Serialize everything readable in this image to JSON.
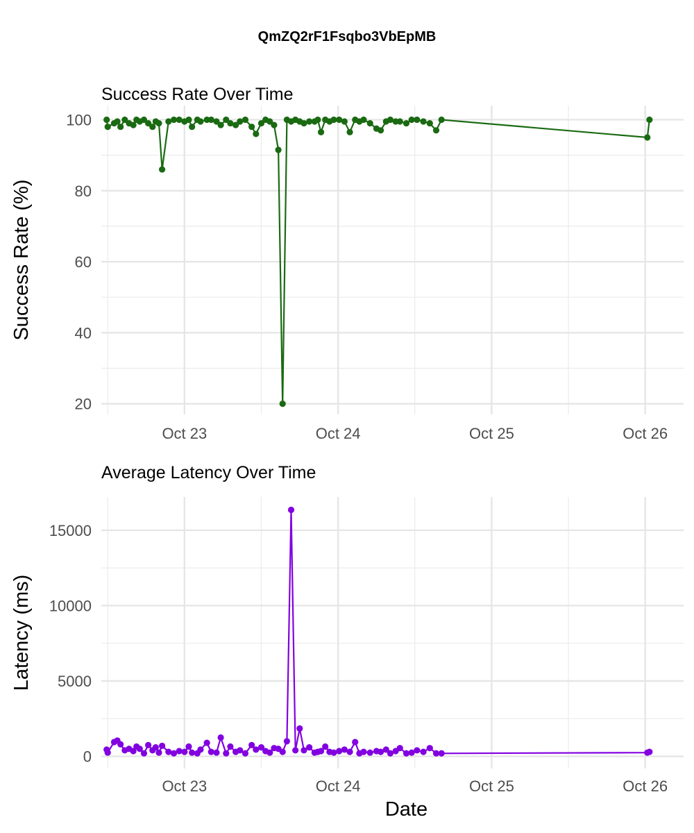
{
  "figure_title": "QmZQ2rF1Fsqbo3VbEpMB",
  "chart_data": [
    {
      "type": "line",
      "title": "Success Rate Over Time",
      "xlabel": "",
      "ylabel": "Success Rate (%)",
      "color": "#1a6a12",
      "xlim": [
        "2022-10-22 11:00",
        "2022-10-26 06:00"
      ],
      "ylim": [
        17,
        104
      ],
      "xticks": [
        "Oct 23",
        "Oct 24",
        "Oct 25",
        "Oct 26"
      ],
      "yticks": [
        20,
        40,
        60,
        80,
        100
      ],
      "grid": true,
      "series": [
        {
          "x": [
            "2022-10-22 11:50",
            "2022-10-22 12:00",
            "2022-10-22 13:00",
            "2022-10-22 13:30",
            "2022-10-22 14:00",
            "2022-10-22 14:40",
            "2022-10-22 15:20",
            "2022-10-22 16:00",
            "2022-10-22 16:30",
            "2022-10-22 17:00",
            "2022-10-22 17:40",
            "2022-10-22 18:20",
            "2022-10-22 19:00",
            "2022-10-22 19:30",
            "2022-10-22 20:00",
            "2022-10-22 20:30",
            "2022-10-22 21:30",
            "2022-10-22 22:20",
            "2022-10-22 23:10",
            "2022-10-23 00:00",
            "2022-10-23 00:40",
            "2022-10-23 01:10",
            "2022-10-23 02:00",
            "2022-10-23 02:30",
            "2022-10-23 03:30",
            "2022-10-23 04:10",
            "2022-10-23 05:00",
            "2022-10-23 05:40",
            "2022-10-23 06:30",
            "2022-10-23 07:10",
            "2022-10-23 08:00",
            "2022-10-23 08:40",
            "2022-10-23 09:30",
            "2022-10-23 10:30",
            "2022-10-23 11:10",
            "2022-10-23 12:00",
            "2022-10-23 12:40",
            "2022-10-23 13:20",
            "2022-10-23 14:00",
            "2022-10-23 14:40",
            "2022-10-23 15:20",
            "2022-10-23 16:00",
            "2022-10-23 16:40",
            "2022-10-23 17:20",
            "2022-10-23 18:00",
            "2022-10-23 18:40",
            "2022-10-23 19:30",
            "2022-10-23 20:20",
            "2022-10-23 20:50",
            "2022-10-23 21:20",
            "2022-10-23 22:00",
            "2022-10-23 22:40",
            "2022-10-23 23:20",
            "2022-10-24 00:10",
            "2022-10-24 01:00",
            "2022-10-24 01:50",
            "2022-10-24 02:40",
            "2022-10-24 03:20",
            "2022-10-24 04:00",
            "2022-10-24 05:00",
            "2022-10-24 06:00",
            "2022-10-24 06:40",
            "2022-10-24 07:30",
            "2022-10-24 08:10",
            "2022-10-24 09:00",
            "2022-10-24 09:40",
            "2022-10-24 10:40",
            "2022-10-24 11:30",
            "2022-10-24 12:20",
            "2022-10-24 13:20",
            "2022-10-24 14:20",
            "2022-10-24 15:20",
            "2022-10-24 16:10",
            "2022-10-26 00:20",
            "2022-10-26 00:40"
          ],
          "y": [
            100,
            98,
            99,
            99.5,
            98,
            100,
            99,
            98.5,
            100,
            99.5,
            100,
            99,
            98,
            99.5,
            99,
            86,
            99.5,
            100,
            100,
            99.5,
            100,
            98,
            100,
            99.5,
            100,
            100,
            99.5,
            98.5,
            100,
            99,
            98.5,
            99.5,
            100,
            98,
            96,
            99,
            100,
            99.5,
            98.5,
            91.5,
            20,
            100,
            99.5,
            100,
            99.5,
            99,
            99.5,
            99.5,
            100,
            96.5,
            100,
            99.5,
            100,
            100,
            99.5,
            96.5,
            100,
            99.5,
            100,
            99,
            97.5,
            97,
            99.5,
            100,
            99.5,
            99.5,
            99,
            100,
            100,
            99.5,
            99,
            97,
            100,
            95,
            100
          ]
        }
      ]
    },
    {
      "type": "line",
      "title": "Average Latency Over Time",
      "xlabel": "Date",
      "ylabel": "Latency (ms)",
      "color": "#8200e0",
      "xlim": [
        "2022-10-22 11:00",
        "2022-10-26 06:00"
      ],
      "ylim": [
        -800,
        17200
      ],
      "xticks": [
        "Oct 23",
        "Oct 24",
        "Oct 25",
        "Oct 26"
      ],
      "yticks": [
        0,
        5000,
        10000,
        15000
      ],
      "grid": true,
      "series": [
        {
          "x": [
            "2022-10-22 11:50",
            "2022-10-22 12:00",
            "2022-10-22 13:00",
            "2022-10-22 13:30",
            "2022-10-22 14:00",
            "2022-10-22 14:40",
            "2022-10-22 15:20",
            "2022-10-22 16:00",
            "2022-10-22 16:30",
            "2022-10-22 17:00",
            "2022-10-22 17:40",
            "2022-10-22 18:20",
            "2022-10-22 19:00",
            "2022-10-22 19:30",
            "2022-10-22 20:00",
            "2022-10-22 20:30",
            "2022-10-22 21:30",
            "2022-10-22 22:20",
            "2022-10-22 23:10",
            "2022-10-23 00:00",
            "2022-10-23 00:40",
            "2022-10-23 01:10",
            "2022-10-23 02:00",
            "2022-10-23 02:30",
            "2022-10-23 03:30",
            "2022-10-23 04:10",
            "2022-10-23 05:00",
            "2022-10-23 05:40",
            "2022-10-23 06:30",
            "2022-10-23 07:10",
            "2022-10-23 08:00",
            "2022-10-23 08:40",
            "2022-10-23 09:30",
            "2022-10-23 10:30",
            "2022-10-23 11:10",
            "2022-10-23 12:00",
            "2022-10-23 12:40",
            "2022-10-23 13:20",
            "2022-10-23 14:00",
            "2022-10-23 14:40",
            "2022-10-23 15:20",
            "2022-10-23 16:00",
            "2022-10-23 16:40",
            "2022-10-23 17:20",
            "2022-10-23 18:00",
            "2022-10-23 18:40",
            "2022-10-23 19:30",
            "2022-10-23 20:20",
            "2022-10-23 20:50",
            "2022-10-23 21:20",
            "2022-10-23 22:00",
            "2022-10-23 22:40",
            "2022-10-23 23:20",
            "2022-10-24 00:10",
            "2022-10-24 01:00",
            "2022-10-24 01:50",
            "2022-10-24 02:40",
            "2022-10-24 03:20",
            "2022-10-24 04:00",
            "2022-10-24 05:00",
            "2022-10-24 06:00",
            "2022-10-24 06:40",
            "2022-10-24 07:30",
            "2022-10-24 08:10",
            "2022-10-24 09:00",
            "2022-10-24 09:40",
            "2022-10-24 10:40",
            "2022-10-24 11:30",
            "2022-10-24 12:20",
            "2022-10-24 13:20",
            "2022-10-24 14:20",
            "2022-10-24 15:20",
            "2022-10-24 16:10",
            "2022-10-26 00:20",
            "2022-10-26 00:40"
          ],
          "y": [
            450,
            250,
            950,
            1050,
            800,
            400,
            500,
            350,
            650,
            500,
            200,
            750,
            400,
            600,
            250,
            700,
            300,
            200,
            350,
            300,
            650,
            250,
            200,
            450,
            900,
            300,
            250,
            1250,
            200,
            650,
            300,
            400,
            200,
            750,
            450,
            600,
            350,
            250,
            550,
            500,
            300,
            1000,
            16350,
            400,
            1850,
            400,
            600,
            250,
            300,
            350,
            650,
            300,
            250,
            350,
            450,
            300,
            950,
            200,
            300,
            250,
            350,
            300,
            450,
            200,
            350,
            550,
            200,
            250,
            400,
            300,
            550,
            200,
            200,
            250,
            300
          ]
        }
      ]
    }
  ]
}
